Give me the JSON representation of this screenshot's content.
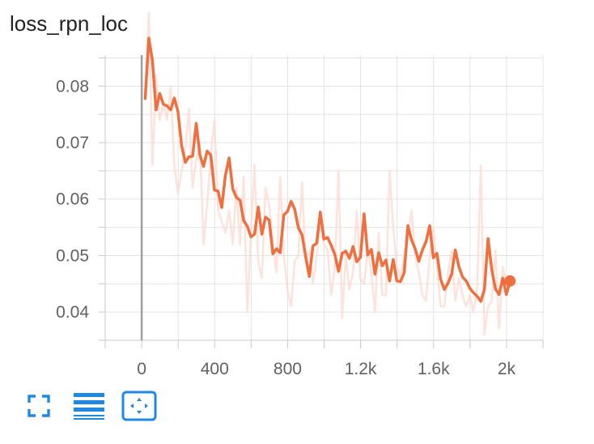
{
  "chart_title": "loss_rpn_loc",
  "toolbar": {
    "buttons": [
      {
        "name": "fullscreen",
        "icon": "fullscreen-icon"
      },
      {
        "name": "toggle-log-scale",
        "icon": "menu-lines-icon"
      },
      {
        "name": "fit-domain",
        "icon": "fit-to-data-icon"
      }
    ],
    "icon_color": "#1e88e5"
  },
  "chart_data": {
    "type": "line",
    "title": "loss_rpn_loc",
    "xlabel": "",
    "ylabel": "",
    "x_ticks": [
      0,
      400,
      800,
      1200,
      1600,
      2000
    ],
    "x_tick_labels": [
      "0",
      "400",
      "800",
      "1.2k",
      "1.6k",
      "2k"
    ],
    "y_ticks": [
      0.04,
      0.05,
      0.06,
      0.07,
      0.08
    ],
    "y_tick_labels": [
      "0.04",
      "0.05",
      "0.06",
      "0.07",
      "0.08"
    ],
    "xlim": [
      -200,
      2200
    ],
    "ylim": [
      0.035,
      0.0855
    ],
    "grid": true,
    "series": [
      {
        "role": "raw",
        "color": "#fbd9cf",
        "x": [
          19,
          39,
          59,
          79,
          99,
          119,
          139,
          159,
          179,
          199,
          219,
          239,
          259,
          279,
          299,
          319,
          339,
          359,
          379,
          399,
          419,
          439,
          459,
          479,
          499,
          519,
          539,
          559,
          579,
          599,
          619,
          639,
          659,
          679,
          699,
          719,
          739,
          759,
          779,
          799,
          819,
          839,
          859,
          879,
          899,
          919,
          939,
          959,
          979,
          999,
          1019,
          1039,
          1059,
          1079,
          1099,
          1119,
          1139,
          1159,
          1179,
          1199,
          1219,
          1239,
          1259,
          1279,
          1299,
          1319,
          1339,
          1359,
          1379,
          1399,
          1419,
          1439,
          1459,
          1479,
          1499,
          1519,
          1539,
          1559,
          1579,
          1599,
          1619,
          1639,
          1659,
          1679,
          1699,
          1719,
          1739,
          1759,
          1779,
          1799,
          1819,
          1839,
          1859,
          1879,
          1899,
          1919,
          1939,
          1959,
          1979,
          1999,
          2019
        ],
        "y": [
          0.078,
          0.093,
          0.066,
          0.082,
          0.074,
          0.077,
          0.074,
          0.08,
          0.066,
          0.061,
          0.065,
          0.069,
          0.076,
          0.062,
          0.067,
          0.07,
          0.052,
          0.059,
          0.068,
          0.074,
          0.058,
          0.056,
          0.054,
          0.058,
          0.052,
          0.062,
          0.052,
          0.064,
          0.04,
          0.054,
          0.066,
          0.049,
          0.046,
          0.062,
          0.059,
          0.052,
          0.047,
          0.064,
          0.05,
          0.044,
          0.041,
          0.049,
          0.05,
          0.063,
          0.049,
          0.051,
          0.045,
          0.05,
          0.056,
          0.052,
          0.051,
          0.043,
          0.048,
          0.065,
          0.039,
          0.05,
          0.044,
          0.047,
          0.058,
          0.046,
          0.045,
          0.051,
          0.047,
          0.04,
          0.054,
          0.043,
          0.043,
          0.065,
          0.055,
          0.048,
          0.046,
          0.05,
          0.053,
          0.058,
          0.05,
          0.047,
          0.043,
          0.042,
          0.05,
          0.055,
          0.048,
          0.041,
          0.041,
          0.047,
          0.051,
          0.042,
          0.046,
          0.043,
          0.041,
          0.043,
          0.04,
          0.044,
          0.066,
          0.036,
          0.041,
          0.042,
          0.051,
          0.037,
          0.048,
          0.045,
          0.046
        ]
      },
      {
        "role": "smoothed",
        "color": "#ef6f3f",
        "x": [
          19,
          39,
          59,
          79,
          99,
          119,
          139,
          159,
          179,
          199,
          219,
          239,
          259,
          279,
          299,
          319,
          339,
          359,
          379,
          399,
          419,
          439,
          459,
          479,
          499,
          519,
          539,
          559,
          579,
          599,
          619,
          639,
          659,
          679,
          699,
          719,
          739,
          759,
          779,
          799,
          819,
          839,
          859,
          879,
          899,
          919,
          939,
          959,
          979,
          999,
          1019,
          1039,
          1059,
          1079,
          1099,
          1119,
          1139,
          1159,
          1179,
          1199,
          1219,
          1239,
          1259,
          1279,
          1299,
          1319,
          1339,
          1359,
          1379,
          1399,
          1419,
          1439,
          1459,
          1479,
          1499,
          1519,
          1539,
          1559,
          1579,
          1599,
          1619,
          1639,
          1659,
          1679,
          1699,
          1719,
          1739,
          1759,
          1779,
          1799,
          1819,
          1839,
          1859,
          1879,
          1899,
          1919,
          1939,
          1959,
          1979,
          1999,
          2019
        ],
        "y": [
          0.0778,
          0.0885,
          0.0845,
          0.0758,
          0.0787,
          0.0768,
          0.0765,
          0.0758,
          0.0779,
          0.0755,
          0.0695,
          0.0665,
          0.0675,
          0.0676,
          0.0734,
          0.0678,
          0.0658,
          0.0685,
          0.0678,
          0.0616,
          0.0614,
          0.0585,
          0.0642,
          0.0673,
          0.0618,
          0.0603,
          0.0598,
          0.0562,
          0.0552,
          0.0533,
          0.0538,
          0.0586,
          0.0538,
          0.0568,
          0.0563,
          0.0503,
          0.0512,
          0.0505,
          0.0572,
          0.0578,
          0.0596,
          0.0582,
          0.0549,
          0.0537,
          0.0498,
          0.0463,
          0.0517,
          0.0522,
          0.0577,
          0.0529,
          0.0532,
          0.0518,
          0.0502,
          0.0472,
          0.0504,
          0.0508,
          0.0495,
          0.0516,
          0.0489,
          0.0497,
          0.0574,
          0.0501,
          0.0511,
          0.0467,
          0.0505,
          0.0482,
          0.0492,
          0.0455,
          0.0493,
          0.0455,
          0.0454,
          0.047,
          0.0553,
          0.0528,
          0.0512,
          0.049,
          0.051,
          0.0525,
          0.0553,
          0.0496,
          0.0504,
          0.0458,
          0.044,
          0.0451,
          0.0467,
          0.051,
          0.048,
          0.0462,
          0.0455,
          0.0442,
          0.0434,
          0.0428,
          0.0419,
          0.044,
          0.053,
          0.0475,
          0.0441,
          0.0431,
          0.046,
          0.0431,
          0.0455
        ]
      }
    ]
  }
}
